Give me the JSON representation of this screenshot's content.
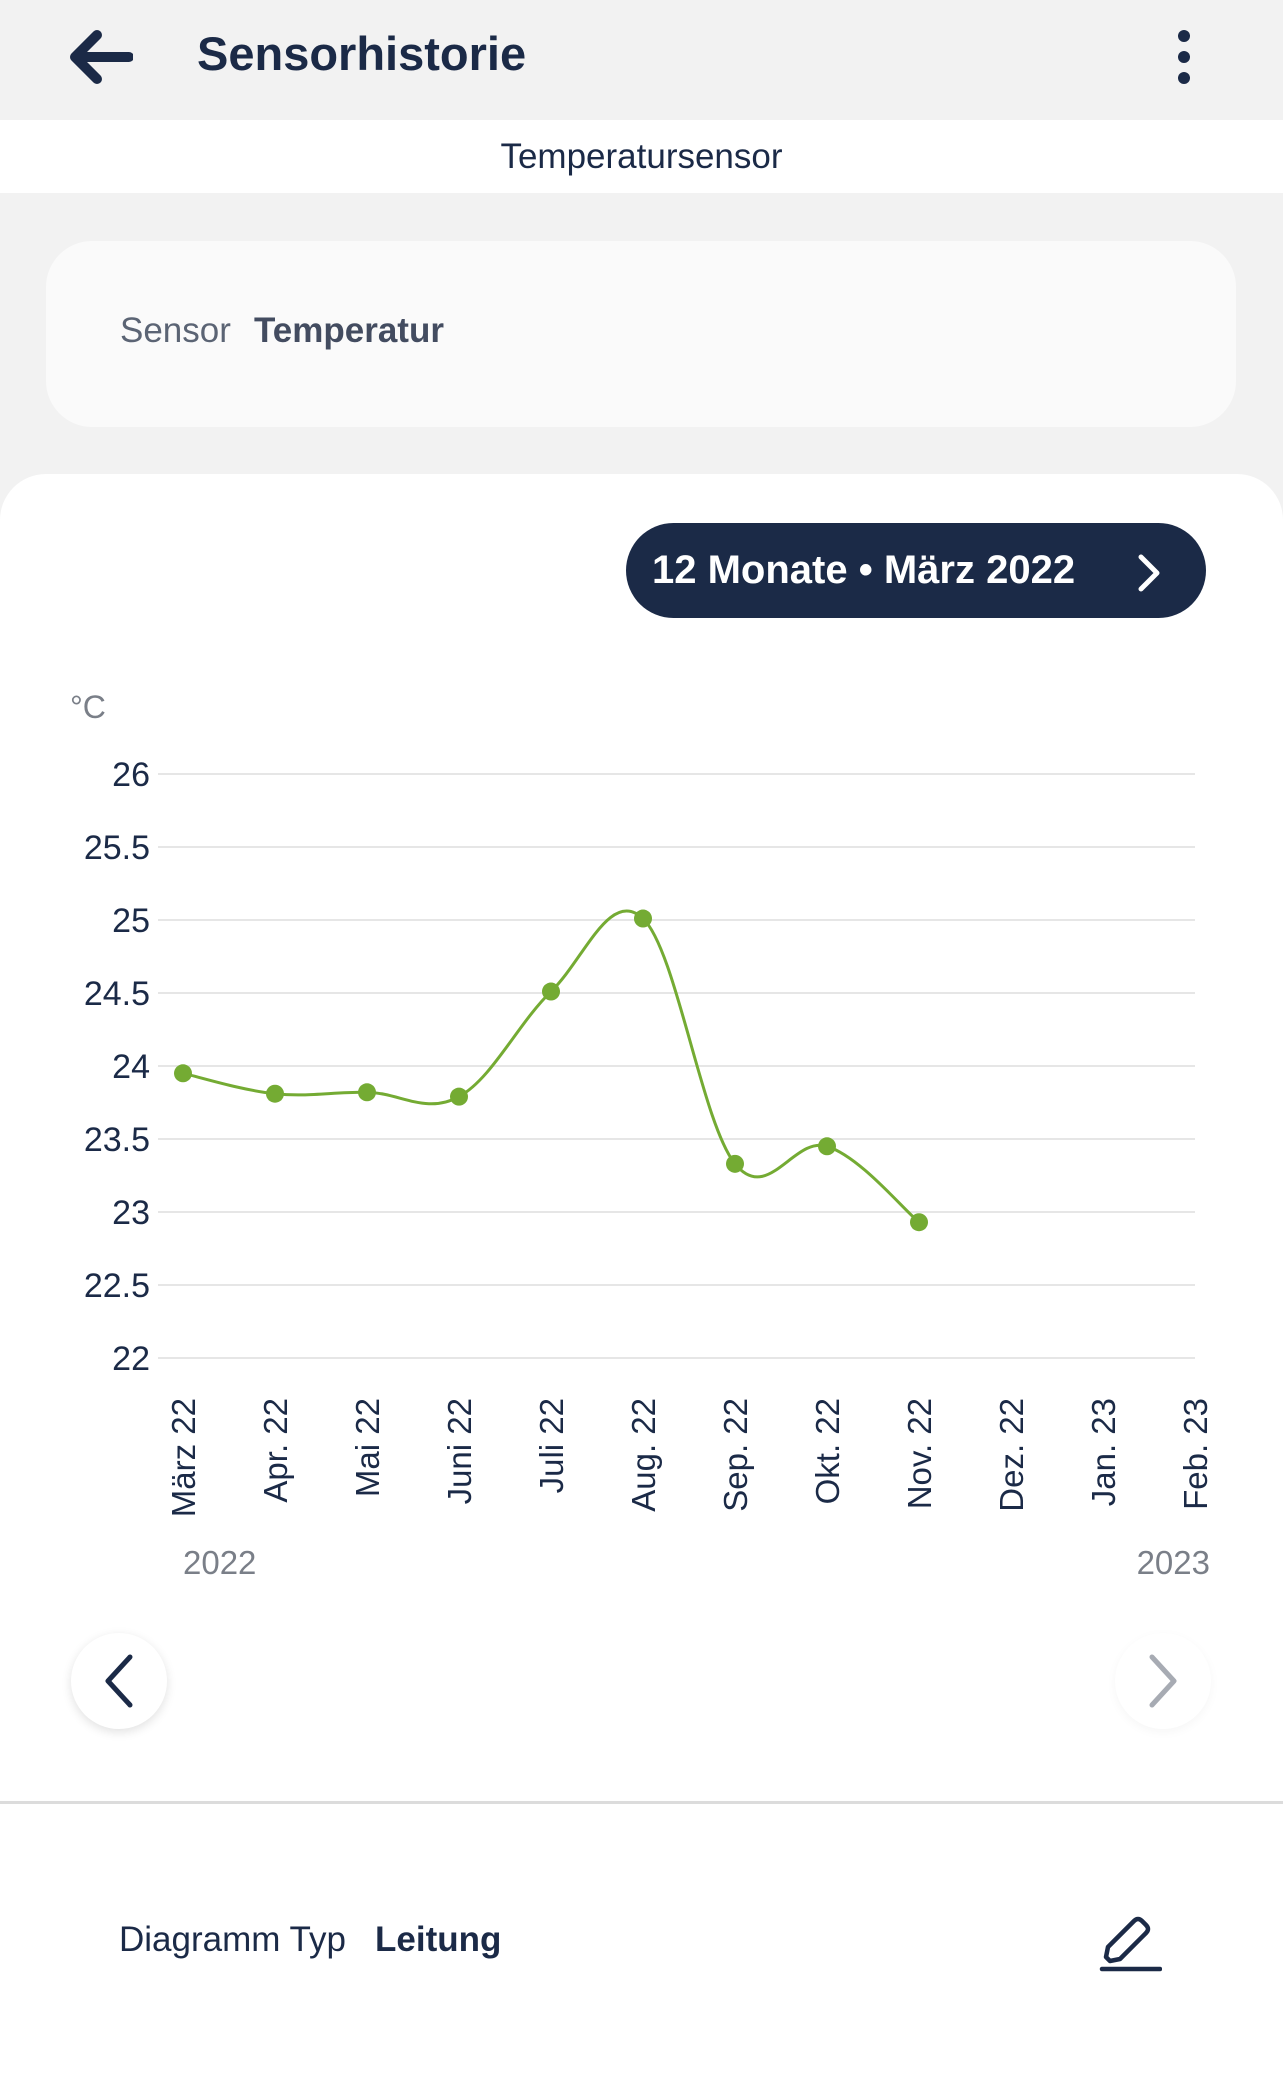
{
  "header": {
    "title": "Sensorhistorie",
    "back_icon": "arrow-left-icon",
    "menu_icon": "more-vertical-icon"
  },
  "subheader": {
    "title": "Temperatursensor"
  },
  "sensor": {
    "label": "Sensor",
    "value": "Temperatur"
  },
  "period": {
    "label": "12 Monate • März 2022",
    "icon": "chevron-right-icon"
  },
  "chart_data": {
    "type": "line",
    "ylabel": "°C",
    "ylim": [
      22,
      26
    ],
    "yticks": [
      "26",
      "25.5",
      "25",
      "24.5",
      "24",
      "23.5",
      "23",
      "22.5",
      "22"
    ],
    "categories": [
      "März 22",
      "Apr. 22",
      "Mai 22",
      "Juni 22",
      "Juli 22",
      "Aug. 22",
      "Sep. 22",
      "Okt. 22",
      "Nov. 22",
      "Dez. 22",
      "Jan. 23",
      "Feb. 23"
    ],
    "values": [
      23.95,
      23.81,
      23.82,
      23.79,
      24.51,
      25.01,
      23.33,
      23.45,
      22.93,
      null,
      null,
      null
    ],
    "year_labels": [
      "2022",
      "2023"
    ],
    "grid": true,
    "series_color": "#74ab33"
  },
  "navigation": {
    "prev_icon": "chevron-left-icon",
    "next_icon": "chevron-right-icon"
  },
  "diagram": {
    "label": "Diagramm Typ",
    "value": "Leitung",
    "edit_icon": "edit-pencil-icon"
  },
  "colors": {
    "primary": "#1b2a47",
    "accent_green": "#74ab33",
    "background": "#f2f2f2"
  }
}
